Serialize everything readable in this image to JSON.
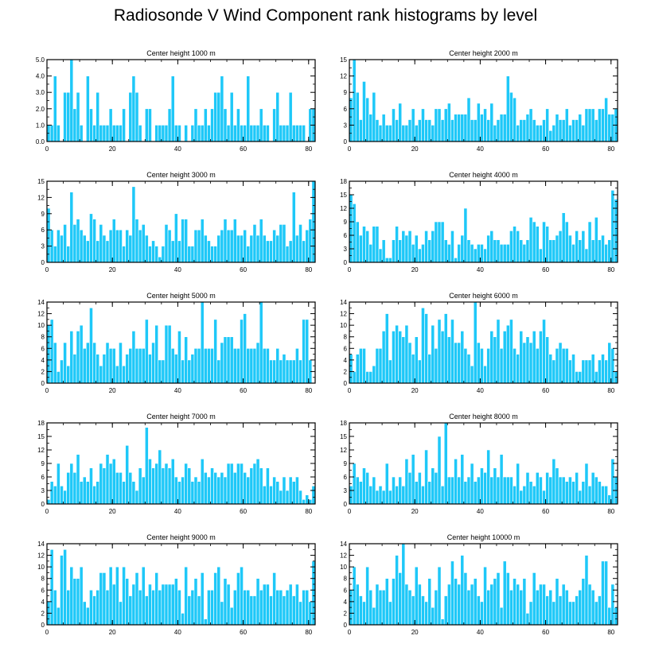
{
  "title": "Radiosonde V Wind Component rank histograms by level",
  "colors": {
    "bar": "#1ec8f8",
    "bar_edge": "#ffffff",
    "axis": "#000000"
  },
  "chart_data": [
    {
      "type": "bar",
      "title": "Center height 1000 m",
      "xlim": [
        0,
        82
      ],
      "ylim": [
        0,
        5
      ],
      "xticks": [
        0,
        20,
        40,
        60,
        80
      ],
      "yticks": [
        0,
        1,
        2,
        3,
        4,
        5
      ],
      "ytick_labels": [
        "0.0",
        "1.0",
        "2.0",
        "3.0",
        "4.0",
        "5.0"
      ],
      "values": [
        1,
        1,
        4,
        1,
        0,
        3,
        3,
        5,
        2,
        3,
        1,
        0,
        4,
        2,
        1,
        3,
        1,
        1,
        1,
        2,
        1,
        1,
        1,
        2,
        0,
        3,
        4,
        3,
        1,
        0,
        2,
        2,
        0,
        1,
        1,
        1,
        1,
        2,
        4,
        1,
        1,
        0,
        1,
        0,
        1,
        2,
        1,
        1,
        2,
        1,
        2,
        3,
        3,
        4,
        2,
        1,
        3,
        1,
        2,
        1,
        1,
        4,
        1,
        1,
        1,
        2,
        1,
        1,
        0,
        2,
        3,
        1,
        1,
        1,
        3,
        1,
        1,
        1,
        1,
        0,
        2,
        2
      ]
    },
    {
      "type": "bar",
      "title": "Center height 2000 m",
      "xlim": [
        0,
        82
      ],
      "ylim": [
        0,
        15
      ],
      "xticks": [
        0,
        20,
        40,
        60,
        80
      ],
      "yticks": [
        0,
        3,
        6,
        9,
        12,
        15
      ],
      "ytick_labels": [
        "0",
        "3",
        "6",
        "9",
        "12",
        "15"
      ],
      "values": [
        8,
        15,
        9,
        4,
        11,
        8,
        5,
        9,
        4,
        3,
        5,
        3,
        3,
        6,
        4,
        7,
        3,
        3,
        4,
        6,
        3,
        4,
        6,
        4,
        4,
        3,
        6,
        6,
        4,
        6,
        7,
        4,
        5,
        5,
        5,
        5,
        8,
        4,
        4,
        7,
        5,
        6,
        4,
        7,
        3,
        4,
        5,
        5,
        12,
        9,
        8,
        3,
        4,
        4,
        5,
        6,
        4,
        3,
        3,
        4,
        6,
        2,
        3,
        5,
        4,
        4,
        6,
        3,
        4,
        4,
        5,
        3,
        6,
        6,
        6,
        4,
        6,
        6,
        8,
        5,
        5,
        6
      ]
    },
    {
      "type": "bar",
      "title": "Center height 3000 m",
      "xlim": [
        0,
        82
      ],
      "ylim": [
        0,
        15
      ],
      "xticks": [
        0,
        20,
        40,
        60,
        80
      ],
      "yticks": [
        0,
        3,
        6,
        9,
        12,
        15
      ],
      "ytick_labels": [
        "0",
        "3",
        "6",
        "9",
        "12",
        "15"
      ],
      "values": [
        10,
        6,
        3,
        6,
        5,
        7,
        3,
        13,
        7,
        8,
        6,
        5,
        4,
        9,
        8,
        4,
        7,
        5,
        4,
        6,
        8,
        6,
        6,
        3,
        6,
        5,
        14,
        8,
        6,
        7,
        5,
        3,
        4,
        3,
        1,
        3,
        7,
        6,
        4,
        9,
        4,
        8,
        8,
        3,
        3,
        6,
        6,
        8,
        5,
        4,
        3,
        3,
        5,
        6,
        8,
        6,
        6,
        8,
        5,
        5,
        6,
        3,
        5,
        7,
        5,
        8,
        5,
        4,
        4,
        6,
        5,
        7,
        7,
        3,
        4,
        13,
        5,
        7,
        4,
        6,
        8,
        15
      ]
    },
    {
      "type": "bar",
      "title": "Center height 4000 m",
      "xlim": [
        0,
        82
      ],
      "ylim": [
        0,
        18
      ],
      "xticks": [
        0,
        20,
        40,
        60,
        80
      ],
      "yticks": [
        0,
        3,
        6,
        9,
        12,
        15,
        18
      ],
      "ytick_labels": [
        "0",
        "3",
        "6",
        "9",
        "12",
        "15",
        "18"
      ],
      "values": [
        15,
        13,
        9,
        6,
        8,
        7,
        4,
        8,
        8,
        3,
        5,
        1,
        1,
        5,
        8,
        5,
        7,
        6,
        7,
        4,
        6,
        3,
        4,
        7,
        5,
        7,
        9,
        9,
        9,
        5,
        4,
        7,
        1,
        4,
        6,
        12,
        5,
        4,
        3,
        4,
        4,
        3,
        6,
        7,
        5,
        5,
        4,
        4,
        4,
        7,
        8,
        7,
        5,
        4,
        5,
        10,
        9,
        8,
        3,
        9,
        8,
        5,
        5,
        6,
        7,
        11,
        9,
        6,
        4,
        7,
        5,
        7,
        3,
        9,
        5,
        10,
        5,
        6,
        4,
        5,
        16,
        14
      ]
    },
    {
      "type": "bar",
      "title": "Center height 5000 m",
      "xlim": [
        0,
        82
      ],
      "ylim": [
        0,
        14
      ],
      "xticks": [
        0,
        20,
        40,
        60,
        80
      ],
      "yticks": [
        0,
        2,
        4,
        6,
        8,
        10,
        12,
        14
      ],
      "ytick_labels": [
        "0",
        "2",
        "4",
        "6",
        "8",
        "10",
        "12",
        "14"
      ],
      "values": [
        10,
        11,
        7,
        2,
        4,
        7,
        3,
        9,
        5,
        9,
        10,
        6,
        7,
        13,
        7,
        5,
        3,
        5,
        7,
        6,
        6,
        3,
        7,
        3,
        5,
        6,
        9,
        6,
        6,
        6,
        11,
        5,
        7,
        10,
        4,
        4,
        10,
        10,
        6,
        5,
        9,
        4,
        8,
        4,
        5,
        6,
        6,
        14,
        6,
        6,
        6,
        11,
        4,
        7,
        8,
        8,
        8,
        6,
        6,
        11,
        12,
        6,
        6,
        6,
        7,
        14,
        6,
        6,
        4,
        4,
        6,
        4,
        5,
        4,
        4,
        4,
        6,
        4,
        11,
        11,
        4,
        0
      ]
    },
    {
      "type": "bar",
      "title": "Center height 6000 m",
      "xlim": [
        0,
        82
      ],
      "ylim": [
        0,
        14
      ],
      "xticks": [
        0,
        20,
        40,
        60,
        80
      ],
      "yticks": [
        0,
        2,
        4,
        6,
        8,
        10,
        12,
        14
      ],
      "ytick_labels": [
        "0",
        "2",
        "4",
        "6",
        "8",
        "10",
        "12",
        "14"
      ],
      "values": [
        5,
        2,
        5,
        6,
        6,
        2,
        2,
        3,
        6,
        6,
        9,
        12,
        4,
        9,
        10,
        9,
        8,
        10,
        7,
        5,
        8,
        4,
        13,
        12,
        5,
        10,
        6,
        11,
        9,
        12,
        8,
        11,
        7,
        7,
        9,
        6,
        5,
        3,
        14,
        7,
        6,
        3,
        6,
        9,
        8,
        11,
        6,
        9,
        10,
        11,
        6,
        5,
        9,
        7,
        8,
        7,
        9,
        6,
        9,
        11,
        8,
        5,
        4,
        6,
        7,
        6,
        6,
        4,
        5,
        2,
        2,
        4,
        4,
        4,
        5,
        2,
        4,
        5,
        4,
        7,
        6,
        2
      ]
    },
    {
      "type": "bar",
      "title": "Center height 7000 m",
      "xlim": [
        0,
        82
      ],
      "ylim": [
        0,
        18
      ],
      "xticks": [
        0,
        20,
        40,
        60,
        80
      ],
      "yticks": [
        0,
        3,
        6,
        9,
        12,
        15,
        18
      ],
      "ytick_labels": [
        "0",
        "3",
        "6",
        "9",
        "12",
        "15",
        "18"
      ],
      "values": [
        1,
        5,
        4,
        9,
        4,
        3,
        7,
        9,
        7,
        11,
        5,
        6,
        5,
        8,
        4,
        5,
        9,
        8,
        11,
        9,
        10,
        7,
        7,
        5,
        13,
        7,
        5,
        3,
        8,
        6,
        17,
        10,
        8,
        9,
        12,
        8,
        9,
        8,
        10,
        6,
        5,
        6,
        9,
        8,
        5,
        6,
        5,
        10,
        7,
        6,
        8,
        7,
        6,
        7,
        6,
        9,
        9,
        7,
        9,
        9,
        7,
        6,
        8,
        9,
        10,
        8,
        4,
        8,
        4,
        6,
        5,
        3,
        6,
        3,
        6,
        5,
        6,
        3,
        1,
        2,
        1,
        4
      ]
    },
    {
      "type": "bar",
      "title": "Center height 8000 m",
      "xlim": [
        0,
        82
      ],
      "ylim": [
        0,
        18
      ],
      "xticks": [
        0,
        20,
        40,
        60,
        80
      ],
      "yticks": [
        0,
        3,
        6,
        9,
        12,
        15,
        18
      ],
      "ytick_labels": [
        "0",
        "3",
        "6",
        "9",
        "12",
        "15",
        "18"
      ],
      "values": [
        4,
        9,
        6,
        5,
        8,
        7,
        4,
        6,
        3,
        4,
        3,
        9,
        3,
        6,
        4,
        6,
        4,
        10,
        7,
        11,
        5,
        7,
        4,
        12,
        5,
        8,
        7,
        15,
        4,
        18,
        6,
        6,
        10,
        6,
        11,
        5,
        6,
        9,
        5,
        6,
        8,
        7,
        12,
        6,
        8,
        6,
        11,
        6,
        6,
        6,
        4,
        9,
        3,
        4,
        7,
        5,
        4,
        7,
        6,
        3,
        7,
        6,
        10,
        8,
        6,
        6,
        5,
        6,
        5,
        7,
        3,
        5,
        9,
        4,
        7,
        6,
        5,
        4,
        4,
        2,
        10,
        6
      ]
    },
    {
      "type": "bar",
      "title": "Center height 9000 m",
      "xlim": [
        0,
        82
      ],
      "ylim": [
        0,
        14
      ],
      "xticks": [
        0,
        20,
        40,
        60,
        80
      ],
      "yticks": [
        0,
        2,
        4,
        6,
        8,
        10,
        12,
        14
      ],
      "ytick_labels": [
        "0",
        "2",
        "4",
        "6",
        "8",
        "10",
        "12",
        "14"
      ],
      "values": [
        4,
        13,
        6,
        3,
        12,
        13,
        6,
        10,
        8,
        8,
        10,
        4,
        3,
        6,
        5,
        6,
        9,
        9,
        6,
        10,
        7,
        10,
        4,
        10,
        8,
        5,
        7,
        9,
        6,
        10,
        5,
        7,
        6,
        9,
        6,
        7,
        7,
        7,
        7,
        8,
        6,
        2,
        10,
        5,
        6,
        8,
        5,
        9,
        1,
        6,
        6,
        9,
        10,
        4,
        8,
        7,
        3,
        6,
        9,
        10,
        6,
        6,
        5,
        5,
        8,
        6,
        7,
        7,
        5,
        9,
        6,
        6,
        5,
        6,
        7,
        5,
        7,
        4,
        6,
        6,
        4,
        11
      ]
    },
    {
      "type": "bar",
      "title": "Center height 10000 m",
      "xlim": [
        0,
        82
      ],
      "ylim": [
        0,
        14
      ],
      "xticks": [
        0,
        20,
        40,
        60,
        80
      ],
      "yticks": [
        0,
        2,
        4,
        6,
        8,
        10,
        12,
        14
      ],
      "ytick_labels": [
        "0",
        "2",
        "4",
        "6",
        "8",
        "10",
        "12",
        "14"
      ],
      "values": [
        6,
        10,
        7,
        5,
        4,
        10,
        6,
        3,
        7,
        6,
        6,
        8,
        4,
        8,
        12,
        9,
        14,
        7,
        6,
        5,
        10,
        7,
        5,
        4,
        8,
        3,
        6,
        10,
        1,
        5,
        7,
        11,
        8,
        7,
        12,
        9,
        6,
        7,
        8,
        5,
        4,
        10,
        6,
        7,
        8,
        9,
        3,
        11,
        9,
        6,
        8,
        7,
        6,
        8,
        2,
        4,
        9,
        6,
        7,
        7,
        5,
        6,
        4,
        8,
        5,
        7,
        6,
        4,
        4,
        5,
        6,
        8,
        12,
        7,
        6,
        4,
        5,
        11,
        11,
        3,
        7,
        3
      ]
    }
  ]
}
